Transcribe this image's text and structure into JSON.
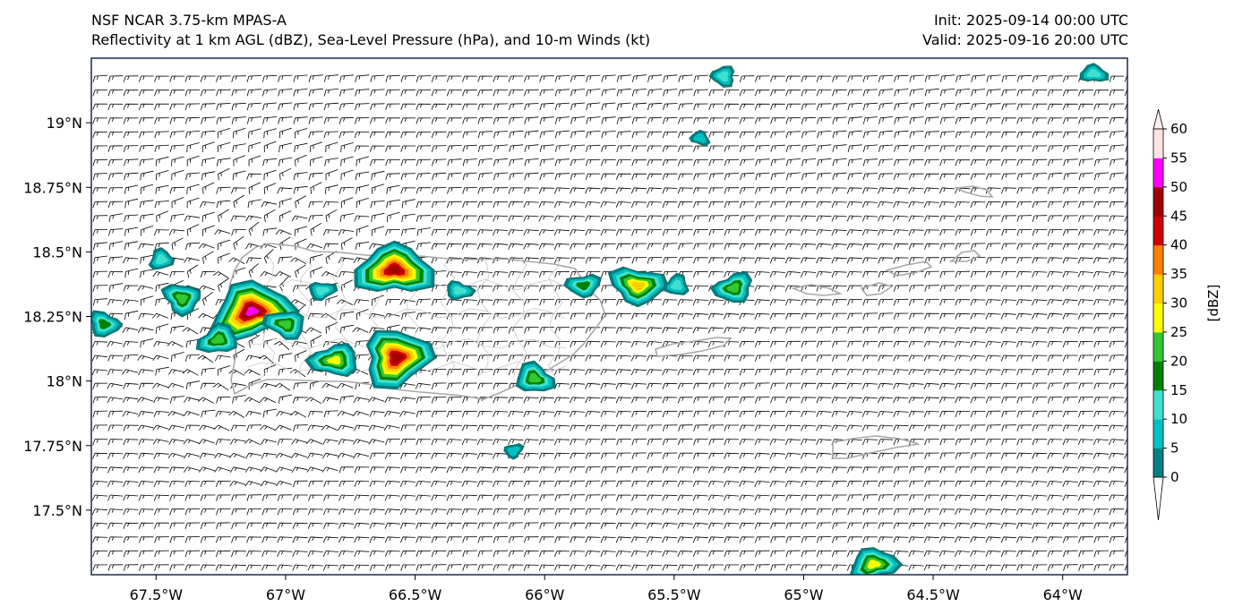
{
  "header": {
    "model": "NSF NCAR 3.75-km MPAS-A",
    "fields": "Reflectivity at 1 km AGL (dBZ), Sea-Level Pressure (hPa), and 10-m Winds (kt)",
    "init": "Init: 2025-09-14 00:00 UTC",
    "valid": "Valid: 2025-09-16 20:00 UTC"
  },
  "map": {
    "lon_range": [
      -67.75,
      -63.75
    ],
    "lat_range": [
      17.25,
      19.25
    ],
    "lat_ticks": [
      {
        "value": 19.0,
        "label": "19°N"
      },
      {
        "value": 18.75,
        "label": "18.75°N"
      },
      {
        "value": 18.5,
        "label": "18.5°N"
      },
      {
        "value": 18.25,
        "label": "18.25°N"
      },
      {
        "value": 18.0,
        "label": "18°N"
      },
      {
        "value": 17.75,
        "label": "17.75°N"
      },
      {
        "value": 17.5,
        "label": "17.5°N"
      }
    ],
    "lon_ticks": [
      {
        "value": -67.5,
        "label": "67.5°W"
      },
      {
        "value": -67.0,
        "label": "67°W"
      },
      {
        "value": -66.5,
        "label": "66.5°W"
      },
      {
        "value": -66.0,
        "label": "66°W"
      },
      {
        "value": -65.5,
        "label": "65.5°W"
      },
      {
        "value": -65.0,
        "label": "65°W"
      },
      {
        "value": -64.5,
        "label": "64.5°W"
      },
      {
        "value": -64.0,
        "label": "64°W"
      }
    ],
    "storms": [
      {
        "lon": -66.58,
        "lat": 18.43,
        "peak_dbz": 45
      },
      {
        "lon": -67.13,
        "lat": 18.27,
        "peak_dbz": 50
      },
      {
        "lon": -66.57,
        "lat": 18.09,
        "peak_dbz": 45
      },
      {
        "lon": -67.4,
        "lat": 18.32,
        "peak_dbz": 20
      },
      {
        "lon": -67.0,
        "lat": 18.22,
        "peak_dbz": 20
      },
      {
        "lon": -66.81,
        "lat": 18.08,
        "peak_dbz": 25
      },
      {
        "lon": -67.26,
        "lat": 18.16,
        "peak_dbz": 20
      },
      {
        "lon": -67.48,
        "lat": 18.47,
        "peak_dbz": 10
      },
      {
        "lon": -67.7,
        "lat": 18.22,
        "peak_dbz": 15
      },
      {
        "lon": -65.64,
        "lat": 18.37,
        "peak_dbz": 30
      },
      {
        "lon": -65.85,
        "lat": 18.37,
        "peak_dbz": 15
      },
      {
        "lon": -65.27,
        "lat": 18.36,
        "peak_dbz": 20
      },
      {
        "lon": -65.49,
        "lat": 18.37,
        "peak_dbz": 10
      },
      {
        "lon": -66.04,
        "lat": 18.01,
        "peak_dbz": 20
      },
      {
        "lon": -66.33,
        "lat": 18.35,
        "peak_dbz": 10
      },
      {
        "lon": -66.86,
        "lat": 18.35,
        "peak_dbz": 10
      },
      {
        "lon": -66.12,
        "lat": 17.73,
        "peak_dbz": 5
      },
      {
        "lon": -65.31,
        "lat": 19.18,
        "peak_dbz": 10
      },
      {
        "lon": -65.4,
        "lat": 18.94,
        "peak_dbz": 5
      },
      {
        "lon": -63.88,
        "lat": 19.19,
        "peak_dbz": 10
      },
      {
        "lon": -64.73,
        "lat": 17.29,
        "peak_dbz": 25
      }
    ]
  },
  "colorbar": {
    "label": "[dBZ]",
    "levels": [
      0,
      5,
      10,
      15,
      20,
      25,
      30,
      35,
      40,
      45,
      50,
      55,
      60
    ],
    "colors": [
      "#008080",
      "#00c0c0",
      "#40e0d0",
      "#008000",
      "#32c832",
      "#ffff00",
      "#ffd000",
      "#ff8000",
      "#d00000",
      "#a00000",
      "#ff00ff",
      "#ffe4e1"
    ],
    "under_color": "#ffffff",
    "over_color": "#fff0ee"
  }
}
